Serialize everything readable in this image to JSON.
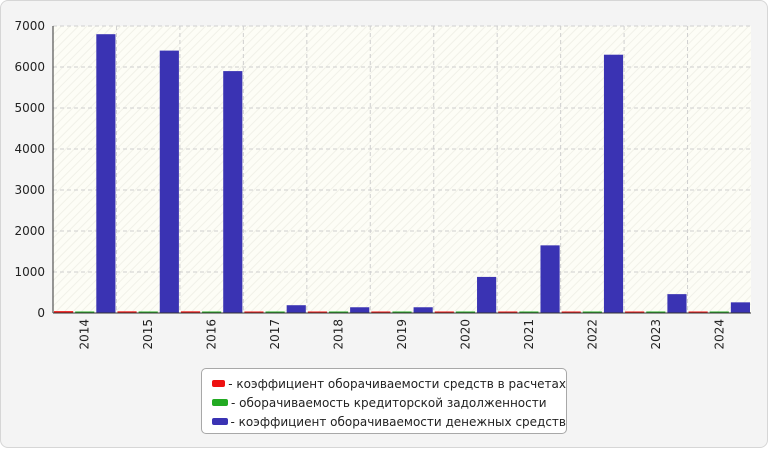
{
  "chart_data": {
    "type": "bar",
    "categories": [
      "2014",
      "2015",
      "2016",
      "2017",
      "2018",
      "2019",
      "2020",
      "2021",
      "2022",
      "2023",
      "2024"
    ],
    "series": [
      {
        "name": "- коэффициент оборачиваемости средств в расчетах",
        "color": "#ee1111",
        "values": [
          45,
          40,
          40,
          25,
          20,
          20,
          20,
          20,
          20,
          20,
          25
        ]
      },
      {
        "name": "- оборачиваемость кредиторской задолженности",
        "color": "#22aa22",
        "values": [
          15,
          15,
          15,
          15,
          15,
          15,
          15,
          15,
          15,
          15,
          15
        ]
      },
      {
        "name": "- коэффициент оборачиваемости денежных средств",
        "color": "#3a33b3",
        "values": [
          6800,
          6400,
          5900,
          190,
          140,
          140,
          880,
          1650,
          6300,
          460,
          260
        ]
      }
    ],
    "ylim": [
      0,
      7000
    ],
    "yticks": [
      "0",
      "1000",
      "2000",
      "3000",
      "4000",
      "5000",
      "6000",
      "7000"
    ],
    "grid": true,
    "legend_position": "bottom"
  }
}
